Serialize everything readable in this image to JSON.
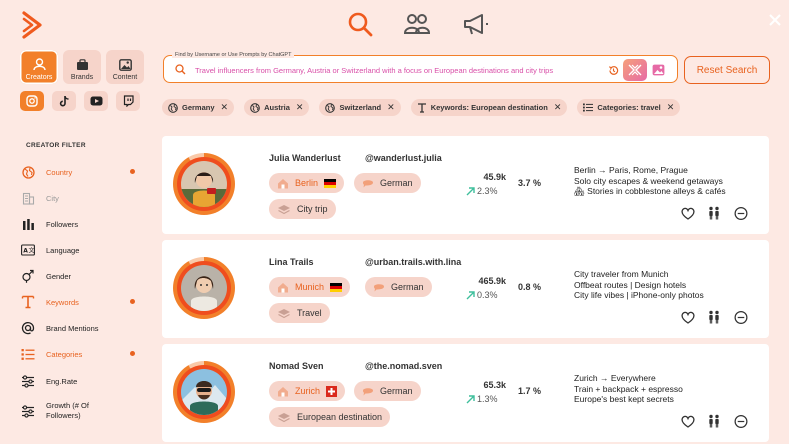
{
  "nav": {
    "icons": [
      "search-icon",
      "users-icon",
      "megaphone-icon"
    ]
  },
  "types": [
    {
      "label": "Creators",
      "icon": "person-icon",
      "active": true
    },
    {
      "label": "Brands",
      "icon": "briefcase-icon",
      "active": false
    },
    {
      "label": "Content",
      "icon": "image-icon",
      "active": false
    }
  ],
  "platforms": [
    "instagram-icon",
    "tiktok-icon",
    "youtube-icon",
    "twitch-icon"
  ],
  "sidebar": {
    "title": "CREATOR FILTER",
    "items": [
      {
        "label": "Country",
        "icon": "globe-icon",
        "state": "active"
      },
      {
        "label": "City",
        "icon": "building-icon",
        "state": "disabled"
      },
      {
        "label": "Followers",
        "icon": "bars-icon",
        "state": "normal"
      },
      {
        "label": "Language",
        "icon": "language-icon",
        "state": "normal"
      },
      {
        "label": "Gender",
        "icon": "gender-icon",
        "state": "normal"
      },
      {
        "label": "Keywords",
        "icon": "text-icon",
        "state": "active"
      },
      {
        "label": "Brand Mentions",
        "icon": "at-icon",
        "state": "normal"
      },
      {
        "label": "Categories",
        "icon": "list-icon",
        "state": "active"
      },
      {
        "label": "Eng.Rate",
        "icon": "sliders-icon",
        "state": "normal"
      },
      {
        "label": "Growth (# Of Followers)",
        "icon": "sliders-icon",
        "state": "normal"
      }
    ]
  },
  "search": {
    "label": "Find by Username or Use Prompts by ChatGPT",
    "value": "Travel influencers from Germany, Austria or Switzerland with a focus on European destinations and city trips",
    "reset_label": "Reset Search"
  },
  "chips": [
    {
      "label": "Germany",
      "icon": "globe-icon"
    },
    {
      "label": "Austria",
      "icon": "globe-icon"
    },
    {
      "label": "Switzerland",
      "icon": "globe-icon"
    },
    {
      "label": "Keywords: European destination",
      "icon": "text-icon"
    },
    {
      "label": "Categories: travel",
      "icon": "list-icon"
    }
  ],
  "creators": [
    {
      "name": "Julia Wanderlust",
      "handle": "@wanderlust.julia",
      "city": "Berlin",
      "city_flag": "germany-flag",
      "language": "German",
      "category": "City trip",
      "followers": "45.9k",
      "growth": "2.3%",
      "eng_rate": "3.7 %",
      "desc": [
        "Berlin → Paris, Rome, Prague",
        "Solo city escapes & weekend getaways",
        "🏘 Stories in cobblestone alleys & cafés"
      ]
    },
    {
      "name": "Lina Trails",
      "handle": "@urban.trails.with.lina",
      "city": "Munich",
      "city_flag": "germany-flag",
      "language": "German",
      "category": "Travel",
      "followers": "465.9k",
      "growth": "0.3%",
      "eng_rate": "0.8 %",
      "desc": [
        "City traveler from Munich",
        "Offbeat routes | Design hotels",
        "City life vibes | iPhone-only photos"
      ]
    },
    {
      "name": "Nomad Sven",
      "handle": "@the.nomad.sven",
      "city": "Zurich",
      "city_flag": "switzerland-flag",
      "language": "German",
      "category": "European destination",
      "followers": "65.3k",
      "growth": "1.3%",
      "eng_rate": "1.7 %",
      "desc": [
        "Zurich → Everywhere",
        "Train + backpack + espresso",
        "Europe's best kept secrets"
      ]
    }
  ]
}
